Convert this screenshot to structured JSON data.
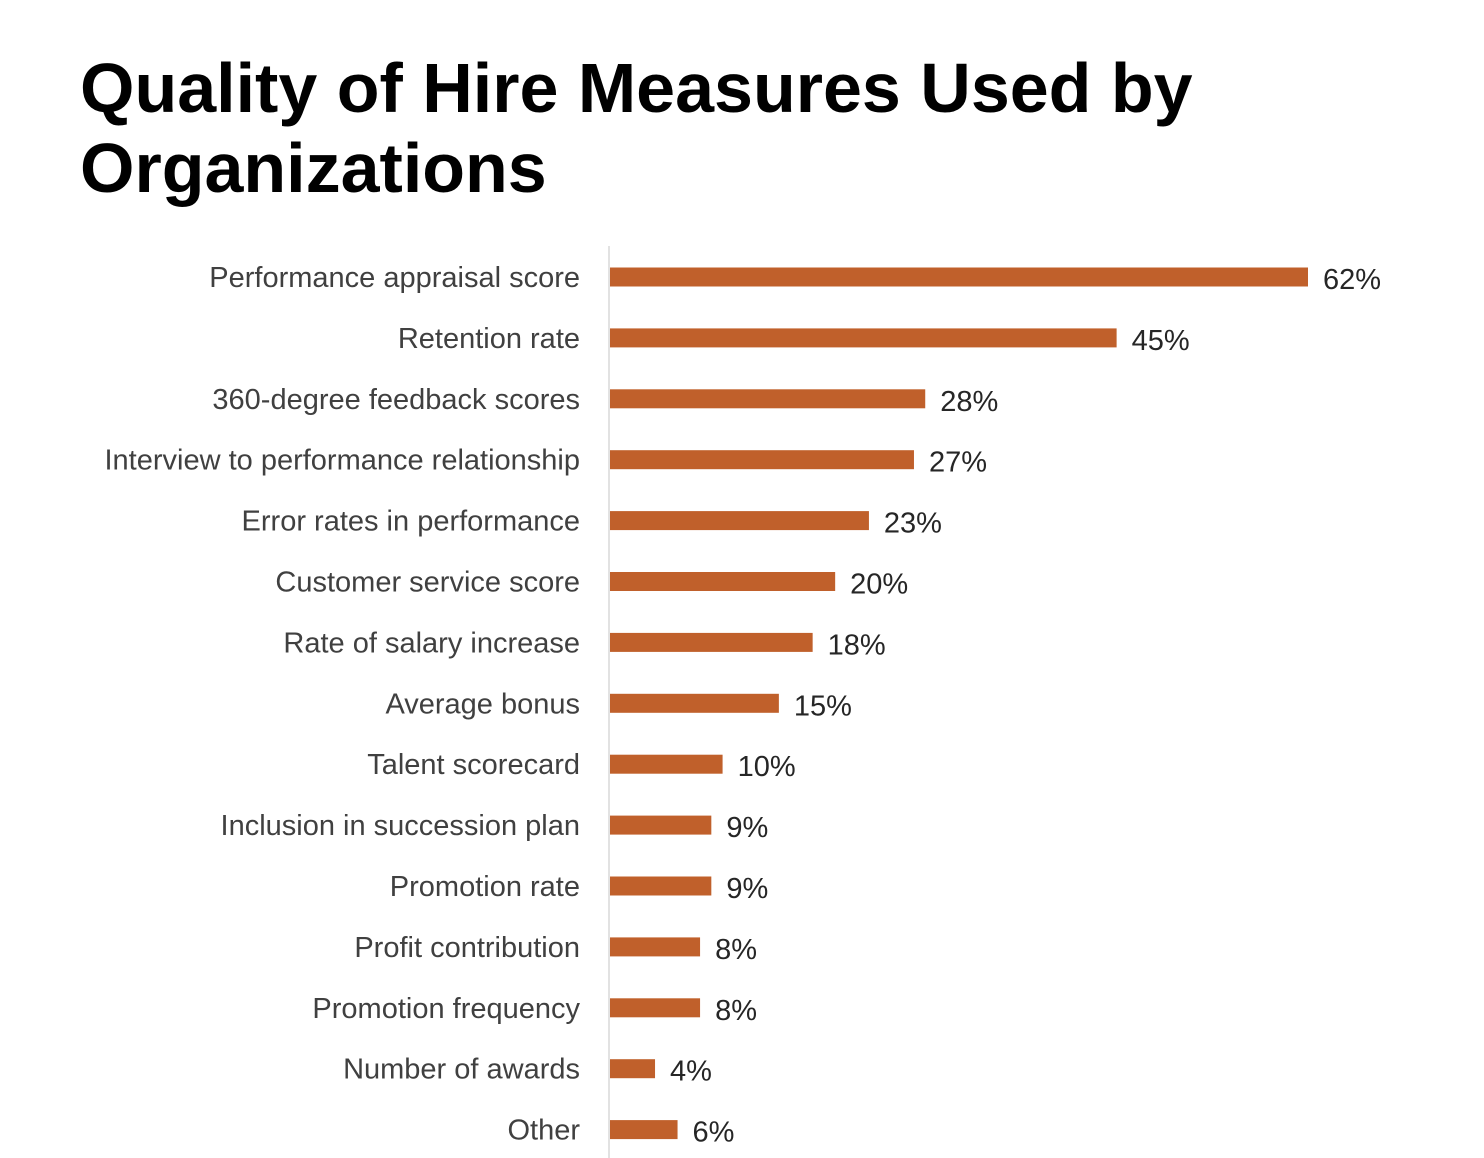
{
  "title": "Quality of Hire Measures Used by Organizations",
  "colors": {
    "bar": "#c0602b",
    "axis": "#d9d9d9"
  },
  "chart_data": {
    "type": "bar",
    "orientation": "horizontal",
    "title": "Quality of Hire Measures Used by Organizations",
    "xlabel": "",
    "ylabel": "",
    "xlim": [
      0,
      62
    ],
    "grid": false,
    "legend": "none",
    "value_suffix": "%",
    "categories": [
      "Performance appraisal score",
      "Retention rate",
      "360-degree feedback scores",
      "Interview to performance relationship",
      "Error rates in performance",
      "Customer service score",
      "Rate of salary increase",
      "Average bonus",
      "Talent scorecard",
      "Inclusion in succession plan",
      "Promotion rate",
      "Profit contribution",
      "Promotion frequency",
      "Number of awards",
      "Other"
    ],
    "values": [
      62,
      45,
      28,
      27,
      23,
      20,
      18,
      15,
      10,
      9,
      9,
      8,
      8,
      4,
      6
    ],
    "data_labels": [
      "62%",
      "45%",
      "28%",
      "27%",
      "23%",
      "20%",
      "18%",
      "15%",
      "10%",
      "9%",
      "9%",
      "8%",
      "8%",
      "4%",
      "6%"
    ]
  }
}
